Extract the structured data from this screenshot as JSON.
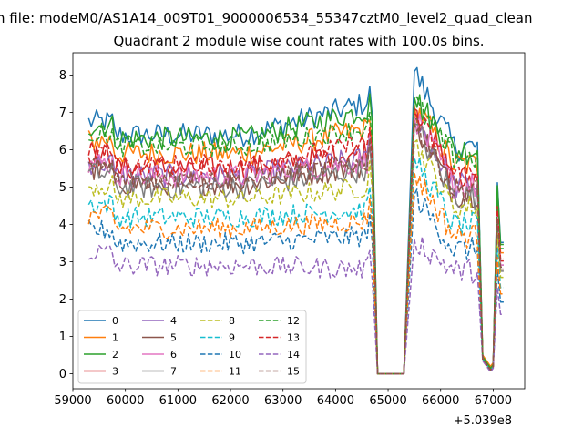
{
  "chart_data": {
    "type": "line",
    "suptitle": "n file: modeM0/AS1A14_009T01_9000006534_55347cztM0_level2_quad_clean",
    "title": "Quadrant 2 module wise count rates with 100.0s bins.",
    "xlabel": "",
    "ylabel": "",
    "x_offset_label": "+5.039e8",
    "xlim": [
      59000,
      67600
    ],
    "ylim": [
      -0.4,
      8.6
    ],
    "x_ticks": [
      59000,
      60000,
      61000,
      62000,
      63000,
      64000,
      65000,
      66000,
      67000
    ],
    "y_ticks": [
      0,
      1,
      2,
      3,
      4,
      5,
      6,
      7,
      8
    ],
    "grid": false,
    "legend_position": "lower-left",
    "legend_columns": 4,
    "segments": [
      {
        "x_start": 59300,
        "x_end": 64700
      },
      {
        "x_start": 64700,
        "x_end": 64800
      },
      {
        "x_start": 64800,
        "x_end": 65300
      },
      {
        "x_start": 65300,
        "x_end": 65500
      },
      {
        "x_start": 65500,
        "x_end": 66700
      },
      {
        "x_start": 66700,
        "x_end": 67000
      },
      {
        "x_start": 67000,
        "x_end": 67200
      }
    ],
    "series": [
      {
        "name": "0",
        "color": "#1f77b4",
        "dash": "solid",
        "level1": 6.4,
        "level2": 7.3,
        "spike1": 7.7,
        "spike2": 8.1,
        "low": 0.15
      },
      {
        "name": "1",
        "color": "#ff7f0e",
        "dash": "solid",
        "level1": 5.9,
        "level2": 6.6,
        "spike1": 6.8,
        "spike2": 7.2,
        "low": 0.2
      },
      {
        "name": "2",
        "color": "#2ca02c",
        "dash": "solid",
        "level1": 6.3,
        "level2": 7.1,
        "spike1": 7.5,
        "spike2": 7.4,
        "low": 0.15
      },
      {
        "name": "3",
        "color": "#d62728",
        "dash": "solid",
        "level1": 5.5,
        "level2": 6.0,
        "spike1": 6.5,
        "spike2": 7.1,
        "low": 0.1
      },
      {
        "name": "4",
        "color": "#9467bd",
        "dash": "solid",
        "level1": 5.3,
        "level2": 5.8,
        "spike1": 6.4,
        "spike2": 6.9,
        "low": 0.1
      },
      {
        "name": "5",
        "color": "#8c564b",
        "dash": "solid",
        "level1": 5.1,
        "level2": 5.6,
        "spike1": 6.2,
        "spike2": 6.8,
        "low": 0.1
      },
      {
        "name": "6",
        "color": "#e377c2",
        "dash": "solid",
        "level1": 5.3,
        "level2": 5.7,
        "spike1": 6.4,
        "spike2": 6.9,
        "low": 0.1
      },
      {
        "name": "7",
        "color": "#7f7f7f",
        "dash": "solid",
        "level1": 5.0,
        "level2": 5.5,
        "spike1": 6.1,
        "spike2": 6.7,
        "low": 0.1
      },
      {
        "name": "8",
        "color": "#bcbd22",
        "dash": "dashed",
        "level1": 4.7,
        "level2": 5.0,
        "spike1": 5.7,
        "spike2": 6.2,
        "low": 0.1
      },
      {
        "name": "9",
        "color": "#17becf",
        "dash": "dashed",
        "level1": 4.2,
        "level2": 4.4,
        "spike1": 5.0,
        "spike2": 5.8,
        "low": 0.1
      },
      {
        "name": "10",
        "color": "#1f77b4",
        "dash": "dashed",
        "level1": 3.5,
        "level2": 3.7,
        "spike1": 4.3,
        "spike2": 4.8,
        "low": 0.1
      },
      {
        "name": "11",
        "color": "#ff7f0e",
        "dash": "dashed",
        "level1": 3.9,
        "level2": 4.1,
        "spike1": 4.7,
        "spike2": 5.4,
        "low": 0.1
      },
      {
        "name": "12",
        "color": "#2ca02c",
        "dash": "dashed",
        "level1": 6.1,
        "level2": 6.6,
        "spike1": 7.0,
        "spike2": 7.3,
        "low": 0.15
      },
      {
        "name": "13",
        "color": "#d62728",
        "dash": "dashed",
        "level1": 5.6,
        "level2": 6.2,
        "spike1": 6.6,
        "spike2": 7.0,
        "low": 0.1
      },
      {
        "name": "14",
        "color": "#9467bd",
        "dash": "dashed",
        "level1": 2.9,
        "level2": 2.8,
        "spike1": 3.3,
        "spike2": 3.6,
        "low": 0.05
      },
      {
        "name": "15",
        "color": "#8c564b",
        "dash": "dashed",
        "level1": 5.2,
        "level2": 5.7,
        "spike1": 6.3,
        "spike2": 6.7,
        "low": 0.1
      }
    ]
  }
}
